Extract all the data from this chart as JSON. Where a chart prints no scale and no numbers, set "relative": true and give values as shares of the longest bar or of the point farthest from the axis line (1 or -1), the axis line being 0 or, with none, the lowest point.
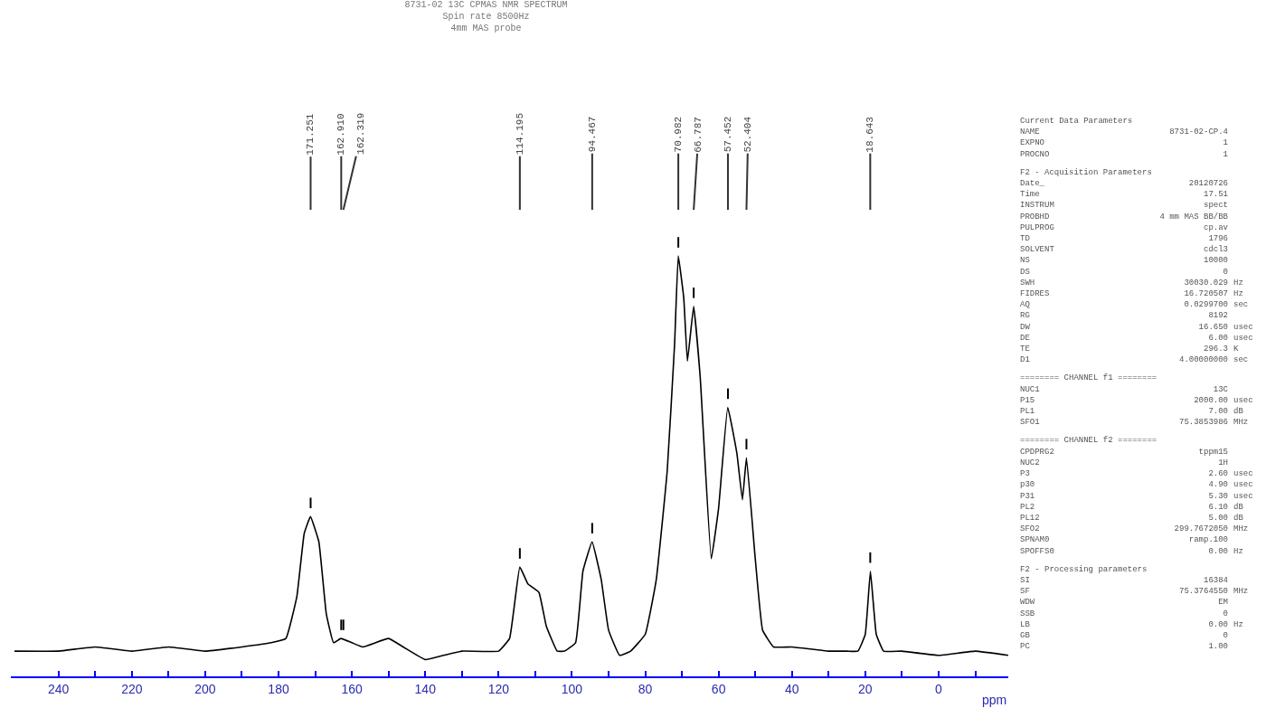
{
  "chart_data": {
    "type": "line",
    "title": "8731-02 13C CPMAS NMR SPECTRUM",
    "subtitle": "Spin rate 8500Hz\n4mm MAS probe",
    "xlabel": "ppm",
    "relative": true,
    "color": "#000000",
    "xlim": [
      253,
      -19
    ],
    "xticks": [
      240,
      {
        "value": 230,
        "label": null
      },
      220,
      {
        "value": 210,
        "label": null
      },
      200,
      {
        "value": 190,
        "label": null
      },
      180,
      {
        "value": 170,
        "label": null
      },
      160,
      {
        "value": 150,
        "label": null
      },
      140,
      {
        "value": 130,
        "label": null
      },
      120,
      {
        "value": 110,
        "label": null
      },
      100,
      {
        "value": 90,
        "label": null
      },
      80,
      {
        "value": 70,
        "label": null
      },
      60,
      {
        "value": 50,
        "label": null
      },
      40,
      {
        "value": 30,
        "label": null
      },
      20,
      {
        "value": 10,
        "label": null
      },
      0,
      {
        "value": -10,
        "label": null
      }
    ],
    "x": [
      252,
      240,
      230,
      220,
      210,
      200,
      190,
      182,
      178,
      175,
      173,
      171.3,
      169,
      167,
      165,
      163,
      160,
      157,
      150,
      146,
      140,
      135,
      130,
      120,
      117,
      114.2,
      112,
      109,
      107,
      104,
      102,
      99,
      97,
      94.5,
      92,
      90,
      87,
      84,
      80,
      77,
      74,
      72,
      71,
      69.5,
      68.5,
      66.8,
      65,
      62,
      60,
      57.5,
      55,
      53.5,
      52.4,
      50,
      48,
      45,
      40,
      30,
      25,
      22,
      20,
      18.6,
      17,
      15,
      10,
      0,
      -10,
      -19
    ],
    "values": [
      0.06,
      0.06,
      0.07,
      0.06,
      0.07,
      0.06,
      0.07,
      0.08,
      0.09,
      0.19,
      0.34,
      0.38,
      0.32,
      0.15,
      0.08,
      0.09,
      0.08,
      0.07,
      0.09,
      0.07,
      0.04,
      0.05,
      0.06,
      0.06,
      0.09,
      0.26,
      0.22,
      0.2,
      0.12,
      0.06,
      0.06,
      0.08,
      0.25,
      0.32,
      0.23,
      0.11,
      0.05,
      0.06,
      0.1,
      0.23,
      0.49,
      0.79,
      1.0,
      0.9,
      0.75,
      0.88,
      0.71,
      0.28,
      0.4,
      0.64,
      0.53,
      0.42,
      0.52,
      0.28,
      0.11,
      0.07,
      0.07,
      0.06,
      0.06,
      0.06,
      0.1,
      0.25,
      0.1,
      0.06,
      0.06,
      0.05,
      0.06,
      0.05
    ],
    "annotations": [
      {
        "text": "171.251",
        "x": 171.251
      },
      {
        "text": "162.910",
        "x": 162.91
      },
      {
        "text": "162.319",
        "x": 162.319
      },
      {
        "text": "114.195",
        "x": 114.195
      },
      {
        "text": "94.467",
        "x": 94.467
      },
      {
        "text": "70.982",
        "x": 70.982
      },
      {
        "text": "66.787",
        "x": 66.787
      },
      {
        "text": "57.452",
        "x": 57.452
      },
      {
        "text": "52.404",
        "x": 52.404
      },
      {
        "text": "18.643",
        "x": 18.643
      },
      "Current Data Parameters",
      "NAME\t8731-02-CP.4",
      "EXPNO\t1",
      "PROCNO\t1",
      "F2 - Acquisition Parameters",
      "Date_\t20120726",
      "Time\t17.51",
      "INSTRUM\tspect",
      "PROBHD\t4 mm MAS BB/BB",
      "PULPROG\tcp.av",
      "TD\t1796",
      "SOLVENT\tcdcl3",
      "NS\t10000",
      "DS\t0",
      "SWH\t30030.029\tHz",
      "FIDRES\t16.720507\tHz",
      "AQ\t0.0299700\tsec",
      "RG\t8192",
      "DW\t16.650\tusec",
      "DE\t6.00\tusec",
      "TE\t296.3\tK",
      "D1\t4.00000000\tsec",
      "======== CHANNEL f1 ========",
      "NUC1\t13C",
      "P15\t2000.00\tusec",
      "PL1\t7.00\tdB",
      "SFO1\t75.3853986\tMHz",
      "======== CHANNEL f2 ========",
      "CPDPRG2\ttppm15",
      "NUC2\t1H",
      "P3\t2.60\tusec",
      "p30\t4.90\tusec",
      "P31\t5.30\tusec",
      "PL2\t6.10\tdB",
      "PL12\t5.00\tdB",
      "SFO2\t299.7672050\tMHz",
      "SPNAM0\tramp.100",
      "SPOFFS0\t0.00\tHz",
      "F2 - Processing parameters",
      "SI\t16384",
      "SF\t75.3764550\tMHz",
      "WDW\tEM",
      "SSB\t0",
      "LB\t0.00\tHz",
      "GB\t0",
      "PC\t1.00"
    ]
  }
}
